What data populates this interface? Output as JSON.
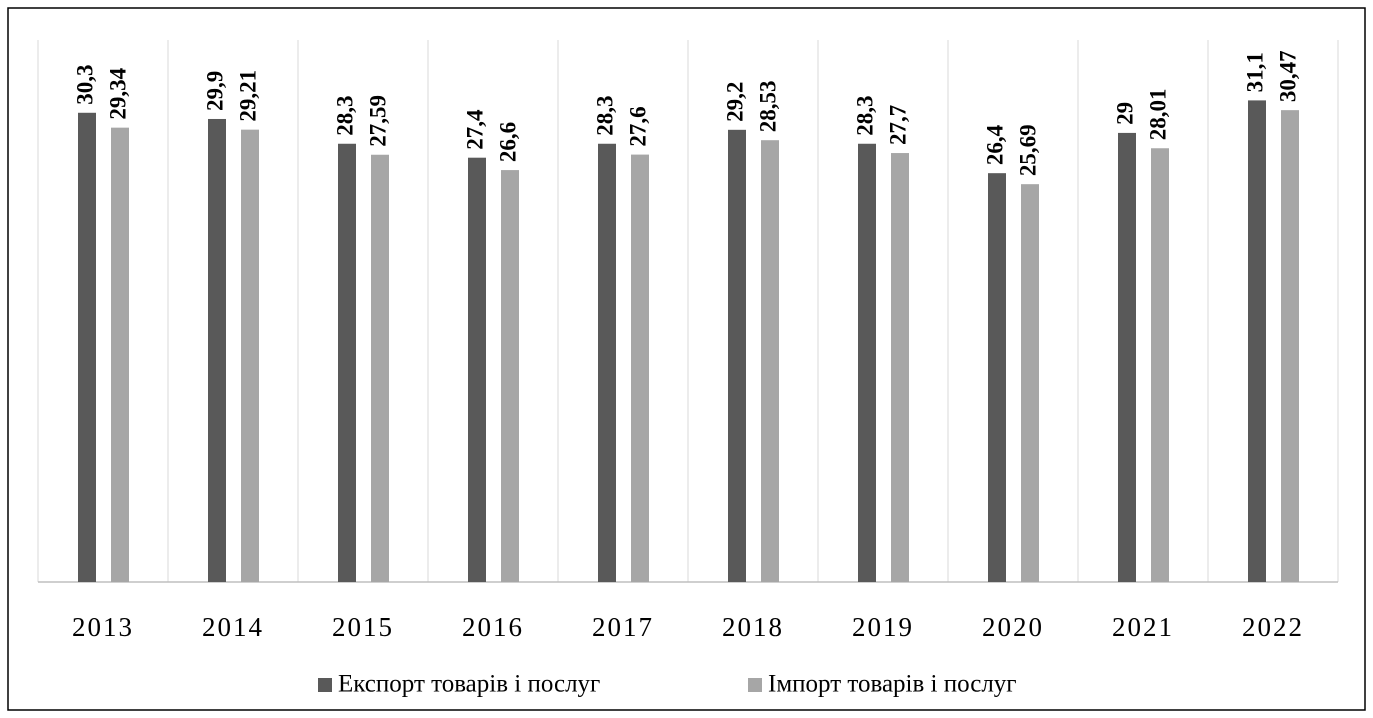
{
  "chart_data": {
    "type": "bar",
    "categories": [
      "2013",
      "2014",
      "2015",
      "2016",
      "2017",
      "2018",
      "2019",
      "2020",
      "2021",
      "2022"
    ],
    "series": [
      {
        "name": "Експорт товарів і послуг",
        "color": "#595959",
        "values": [
          30.3,
          29.9,
          28.3,
          27.4,
          28.3,
          29.2,
          28.3,
          26.4,
          29,
          31.1
        ],
        "value_labels": [
          "30,3",
          "29,9",
          "28,3",
          "27,4",
          "28,3",
          "29,2",
          "28,3",
          "26,4",
          "29",
          "31,1"
        ]
      },
      {
        "name": "Імпорт товарів і послуг",
        "color": "#a6a6a6",
        "values": [
          29.34,
          29.21,
          27.59,
          26.6,
          27.6,
          28.53,
          27.7,
          25.69,
          28.01,
          30.47
        ],
        "value_labels": [
          "29,34",
          "29,21",
          "27,59",
          "26,6",
          "27,6",
          "28,53",
          "27,7",
          "25,69",
          "28,01",
          "30,47"
        ]
      }
    ],
    "ylim": [
      0,
      35
    ],
    "legend": "bottom"
  }
}
